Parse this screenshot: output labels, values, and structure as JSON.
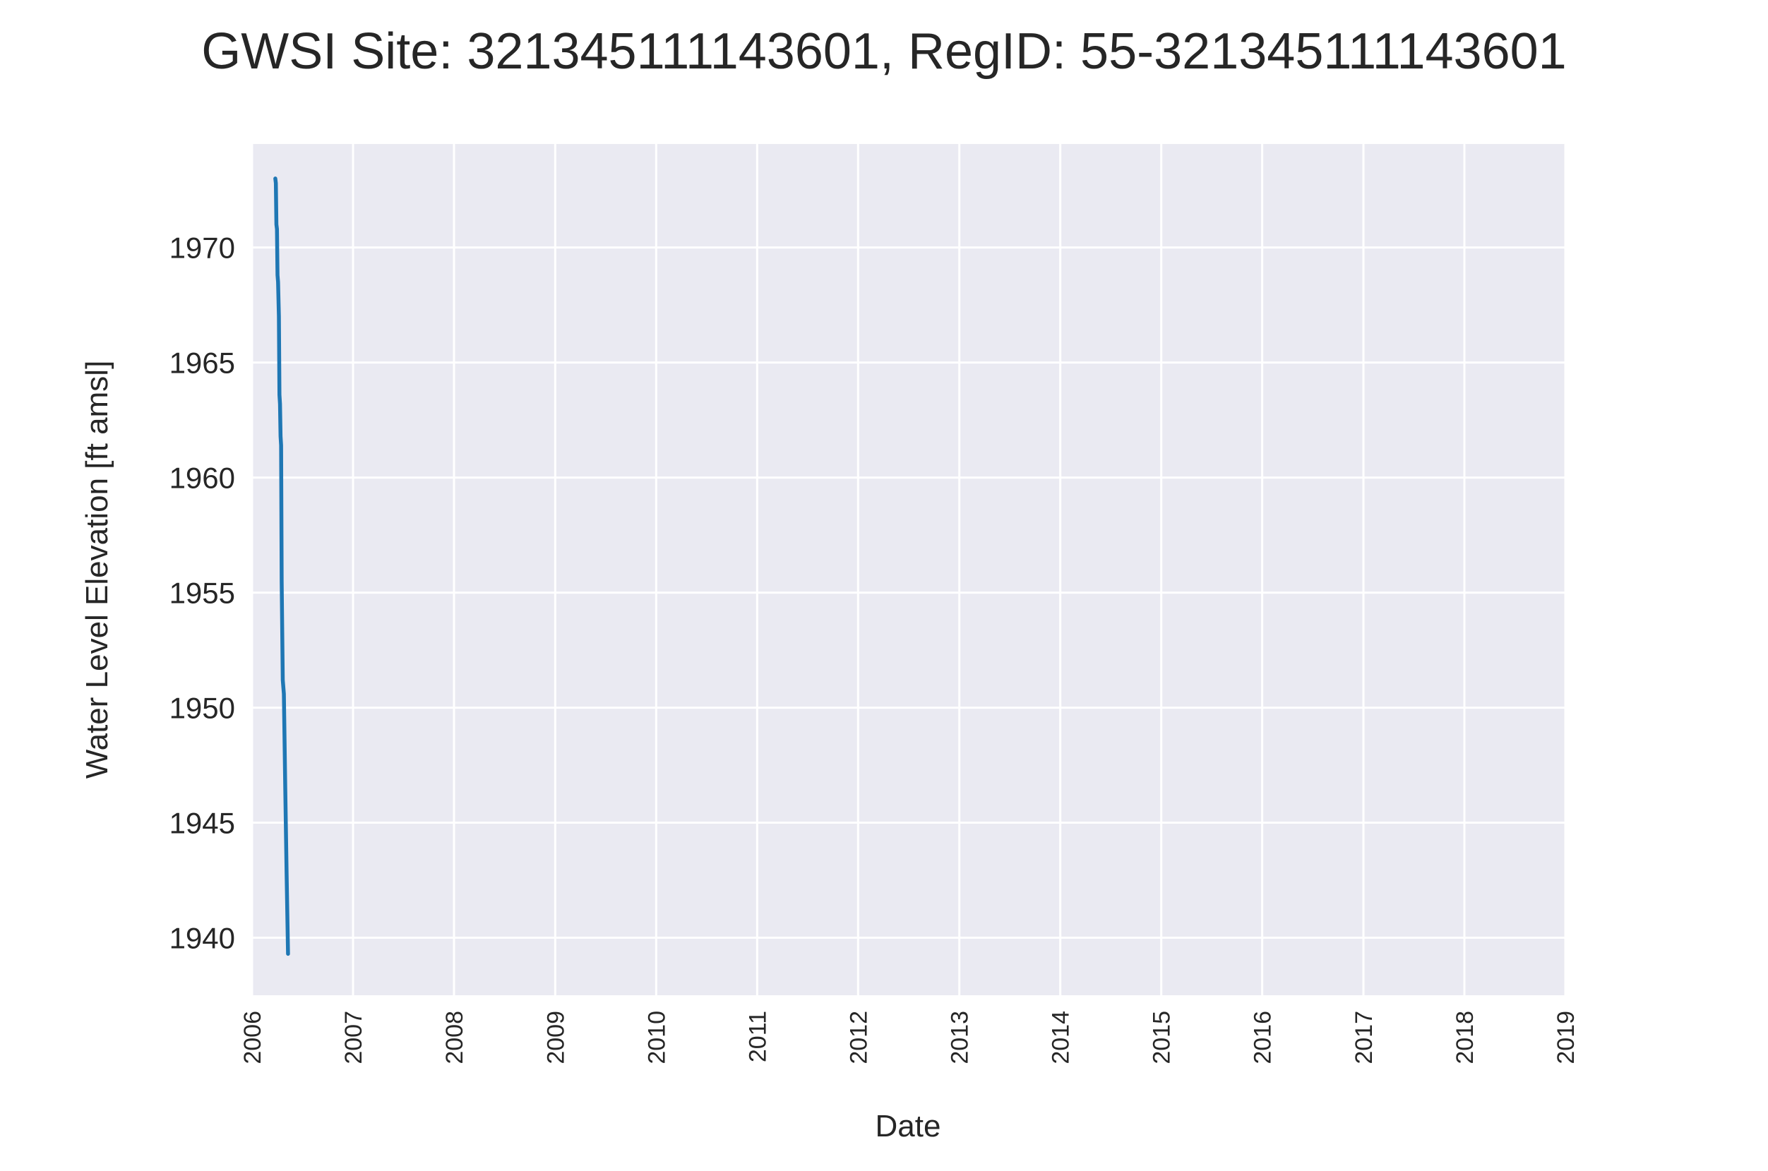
{
  "chart_data": {
    "type": "line",
    "title": "GWSI Site: 321345111143601, RegID: 55-321345111143601",
    "xlabel": "Date",
    "ylabel": "Water Level Elevation [ft amsl]",
    "x_type": "date",
    "xlim": [
      "2006-01-01",
      "2019-01-01"
    ],
    "ylim": [
      1937.5,
      1974.5
    ],
    "grid": true,
    "legend": "none",
    "xticks": [
      "2006",
      "2007",
      "2008",
      "2009",
      "2010",
      "2011",
      "2012",
      "2013",
      "2014",
      "2015",
      "2016",
      "2017",
      "2018",
      "2019"
    ],
    "yticks": [
      1940,
      1945,
      1950,
      1955,
      1960,
      1965,
      1970
    ],
    "series": [
      {
        "color": "#1f77b4",
        "x": [
          "2006-03-26",
          "2006-03-28",
          "2006-03-30",
          "2006-04-01",
          "2006-04-03",
          "2006-04-05",
          "2006-04-08",
          "2006-04-10",
          "2006-04-12",
          "2006-04-14",
          "2006-04-16",
          "2006-04-18",
          "2006-04-22",
          "2006-04-26",
          "2006-05-01",
          "2006-05-06",
          "2006-05-11"
        ],
        "y": [
          1973.0,
          1972.8,
          1971.0,
          1970.8,
          1968.8,
          1968.5,
          1967.0,
          1963.6,
          1963.2,
          1961.8,
          1961.4,
          1955.5,
          1951.2,
          1950.6,
          1946.5,
          1942.7,
          1939.3
        ]
      }
    ]
  }
}
